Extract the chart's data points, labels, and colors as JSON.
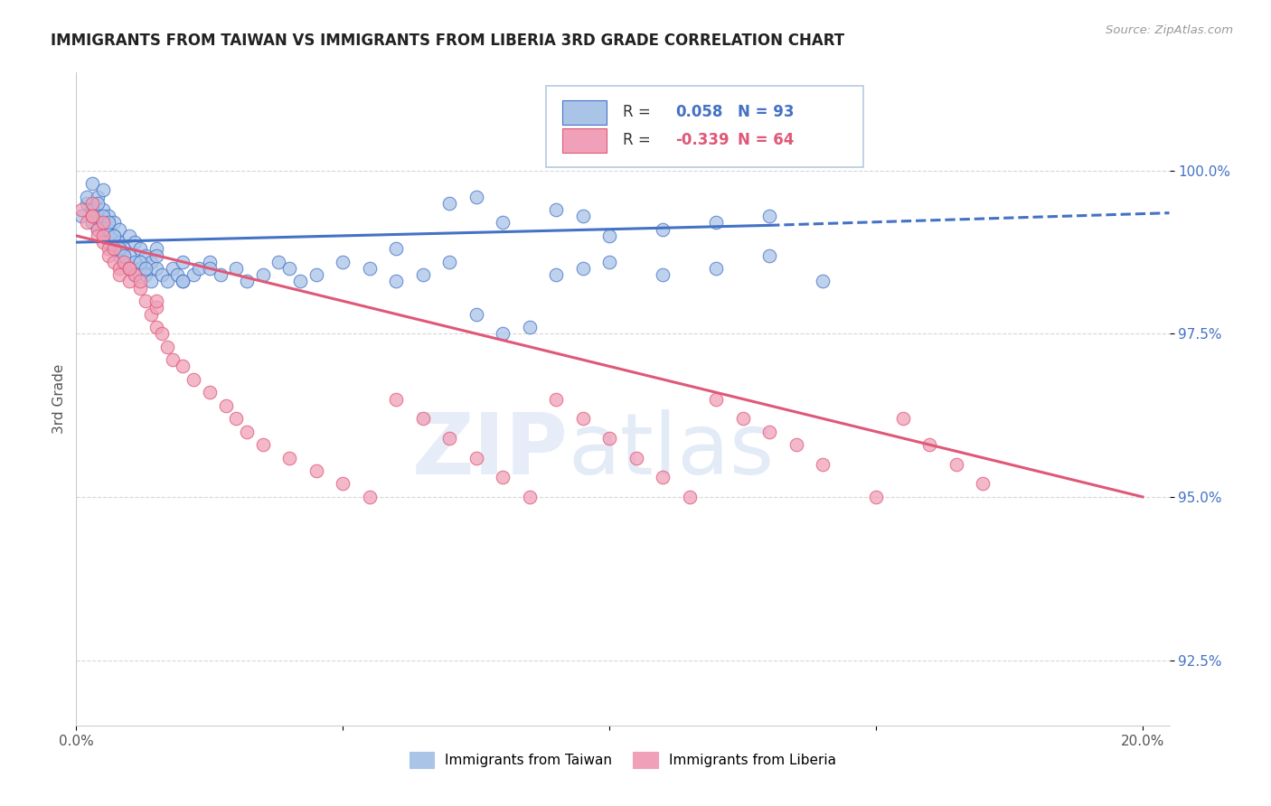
{
  "title": "IMMIGRANTS FROM TAIWAN VS IMMIGRANTS FROM LIBERIA 3RD GRADE CORRELATION CHART",
  "source": "Source: ZipAtlas.com",
  "ylabel": "3rd Grade",
  "xlim": [
    0.0,
    0.205
  ],
  "ylim": [
    91.5,
    101.5
  ],
  "taiwan_R": 0.058,
  "taiwan_N": 93,
  "liberia_R": -0.339,
  "liberia_N": 64,
  "taiwan_color": "#aac4e8",
  "taiwan_line_color": "#4472c4",
  "liberia_color": "#f0a0b8",
  "liberia_line_color": "#e05878",
  "background_color": "#ffffff",
  "y_ticks": [
    92.5,
    95.0,
    97.5,
    100.0
  ],
  "y_tick_labels": [
    "92.5%",
    "95.0%",
    "97.5%",
    "100.0%"
  ],
  "taiwan_x": [
    0.001,
    0.002,
    0.002,
    0.003,
    0.003,
    0.003,
    0.004,
    0.004,
    0.004,
    0.005,
    0.005,
    0.005,
    0.005,
    0.006,
    0.006,
    0.006,
    0.007,
    0.007,
    0.007,
    0.008,
    0.008,
    0.008,
    0.009,
    0.009,
    0.01,
    0.01,
    0.01,
    0.011,
    0.011,
    0.012,
    0.012,
    0.013,
    0.013,
    0.014,
    0.014,
    0.015,
    0.015,
    0.016,
    0.017,
    0.018,
    0.019,
    0.02,
    0.02,
    0.022,
    0.023,
    0.025,
    0.027,
    0.03,
    0.032,
    0.035,
    0.038,
    0.04,
    0.042,
    0.045,
    0.05,
    0.055,
    0.06,
    0.065,
    0.07,
    0.075,
    0.08,
    0.085,
    0.09,
    0.095,
    0.1,
    0.11,
    0.12,
    0.13,
    0.14,
    0.003,
    0.004,
    0.005,
    0.006,
    0.007,
    0.008,
    0.009,
    0.01,
    0.011,
    0.012,
    0.013,
    0.015,
    0.02,
    0.025,
    0.06,
    0.07,
    0.075,
    0.08,
    0.09,
    0.095,
    0.1,
    0.11,
    0.12,
    0.13
  ],
  "taiwan_y": [
    99.3,
    99.5,
    99.6,
    99.2,
    99.4,
    99.8,
    99.1,
    99.3,
    99.6,
    99.0,
    99.2,
    99.4,
    99.7,
    98.9,
    99.1,
    99.3,
    98.8,
    99.0,
    99.2,
    98.7,
    98.9,
    99.1,
    98.6,
    98.8,
    98.5,
    98.7,
    99.0,
    98.6,
    98.9,
    98.5,
    98.8,
    98.4,
    98.7,
    98.3,
    98.6,
    98.5,
    98.8,
    98.4,
    98.3,
    98.5,
    98.4,
    98.6,
    98.3,
    98.4,
    98.5,
    98.6,
    98.4,
    98.5,
    98.3,
    98.4,
    98.6,
    98.5,
    98.3,
    98.4,
    98.6,
    98.5,
    98.3,
    98.4,
    98.6,
    97.8,
    97.5,
    97.6,
    98.4,
    98.5,
    98.6,
    98.4,
    98.5,
    98.7,
    98.3,
    99.4,
    99.5,
    99.3,
    99.2,
    99.0,
    98.8,
    98.7,
    98.5,
    98.4,
    98.6,
    98.5,
    98.7,
    98.3,
    98.5,
    98.8,
    99.5,
    99.6,
    99.2,
    99.4,
    99.3,
    99.0,
    99.1,
    99.2,
    99.3
  ],
  "liberia_x": [
    0.001,
    0.002,
    0.003,
    0.003,
    0.004,
    0.004,
    0.005,
    0.005,
    0.006,
    0.006,
    0.007,
    0.008,
    0.008,
    0.009,
    0.01,
    0.01,
    0.011,
    0.012,
    0.013,
    0.014,
    0.015,
    0.015,
    0.016,
    0.017,
    0.018,
    0.02,
    0.022,
    0.025,
    0.028,
    0.03,
    0.032,
    0.035,
    0.04,
    0.045,
    0.05,
    0.055,
    0.06,
    0.065,
    0.07,
    0.075,
    0.08,
    0.085,
    0.09,
    0.095,
    0.1,
    0.105,
    0.11,
    0.115,
    0.12,
    0.125,
    0.13,
    0.135,
    0.14,
    0.15,
    0.155,
    0.16,
    0.165,
    0.17,
    0.003,
    0.005,
    0.007,
    0.01,
    0.012,
    0.015
  ],
  "liberia_y": [
    99.4,
    99.2,
    99.3,
    99.5,
    99.1,
    99.0,
    98.9,
    99.2,
    98.8,
    98.7,
    98.6,
    98.5,
    98.4,
    98.6,
    98.3,
    98.5,
    98.4,
    98.2,
    98.0,
    97.8,
    97.6,
    97.9,
    97.5,
    97.3,
    97.1,
    97.0,
    96.8,
    96.6,
    96.4,
    96.2,
    96.0,
    95.8,
    95.6,
    95.4,
    95.2,
    95.0,
    96.5,
    96.2,
    95.9,
    95.6,
    95.3,
    95.0,
    96.5,
    96.2,
    95.9,
    95.6,
    95.3,
    95.0,
    96.5,
    96.2,
    96.0,
    95.8,
    95.5,
    95.0,
    96.2,
    95.8,
    95.5,
    95.2,
    99.3,
    99.0,
    98.8,
    98.5,
    98.3,
    98.0
  ]
}
